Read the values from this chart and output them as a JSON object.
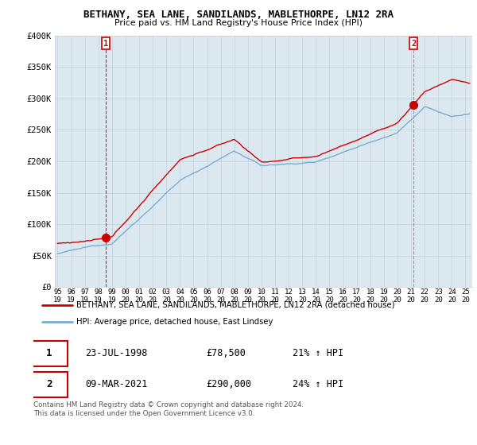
{
  "title": "BETHANY, SEA LANE, SANDILANDS, MABLETHORPE, LN12 2RA",
  "subtitle": "Price paid vs. HM Land Registry's House Price Index (HPI)",
  "ylim": [
    0,
    400000
  ],
  "yticks": [
    0,
    50000,
    100000,
    150000,
    200000,
    250000,
    300000,
    350000,
    400000
  ],
  "ytick_labels": [
    "£0",
    "£50K",
    "£100K",
    "£150K",
    "£200K",
    "£250K",
    "£300K",
    "£350K",
    "£400K"
  ],
  "sale1_x": 1998.55,
  "sale1_y": 78500,
  "sale2_x": 2021.18,
  "sale2_y": 290000,
  "legend_line1": "BETHANY, SEA LANE, SANDILANDS, MABLETHORPE, LN12 2RA (detached house)",
  "legend_line2": "HPI: Average price, detached house, East Lindsey",
  "table_row1": [
    "1",
    "23-JUL-1998",
    "£78,500",
    "21% ↑ HPI"
  ],
  "table_row2": [
    "2",
    "09-MAR-2021",
    "£290,000",
    "24% ↑ HPI"
  ],
  "footer": "Contains HM Land Registry data © Crown copyright and database right 2024.\nThis data is licensed under the Open Government Licence v3.0.",
  "color_red": "#cc0000",
  "color_blue": "#7aadce",
  "color_grid": "#c8d4e0",
  "chart_bg": "#dce8f0",
  "bg_color": "#ffffff",
  "x_start": 1994.8,
  "x_end": 2025.5,
  "xtick_years": [
    1995,
    1996,
    1997,
    1998,
    1999,
    2000,
    2001,
    2002,
    2003,
    2004,
    2005,
    2006,
    2007,
    2008,
    2009,
    2010,
    2011,
    2012,
    2013,
    2014,
    2015,
    2016,
    2017,
    2018,
    2019,
    2020,
    2021,
    2022,
    2023,
    2024,
    2025
  ]
}
